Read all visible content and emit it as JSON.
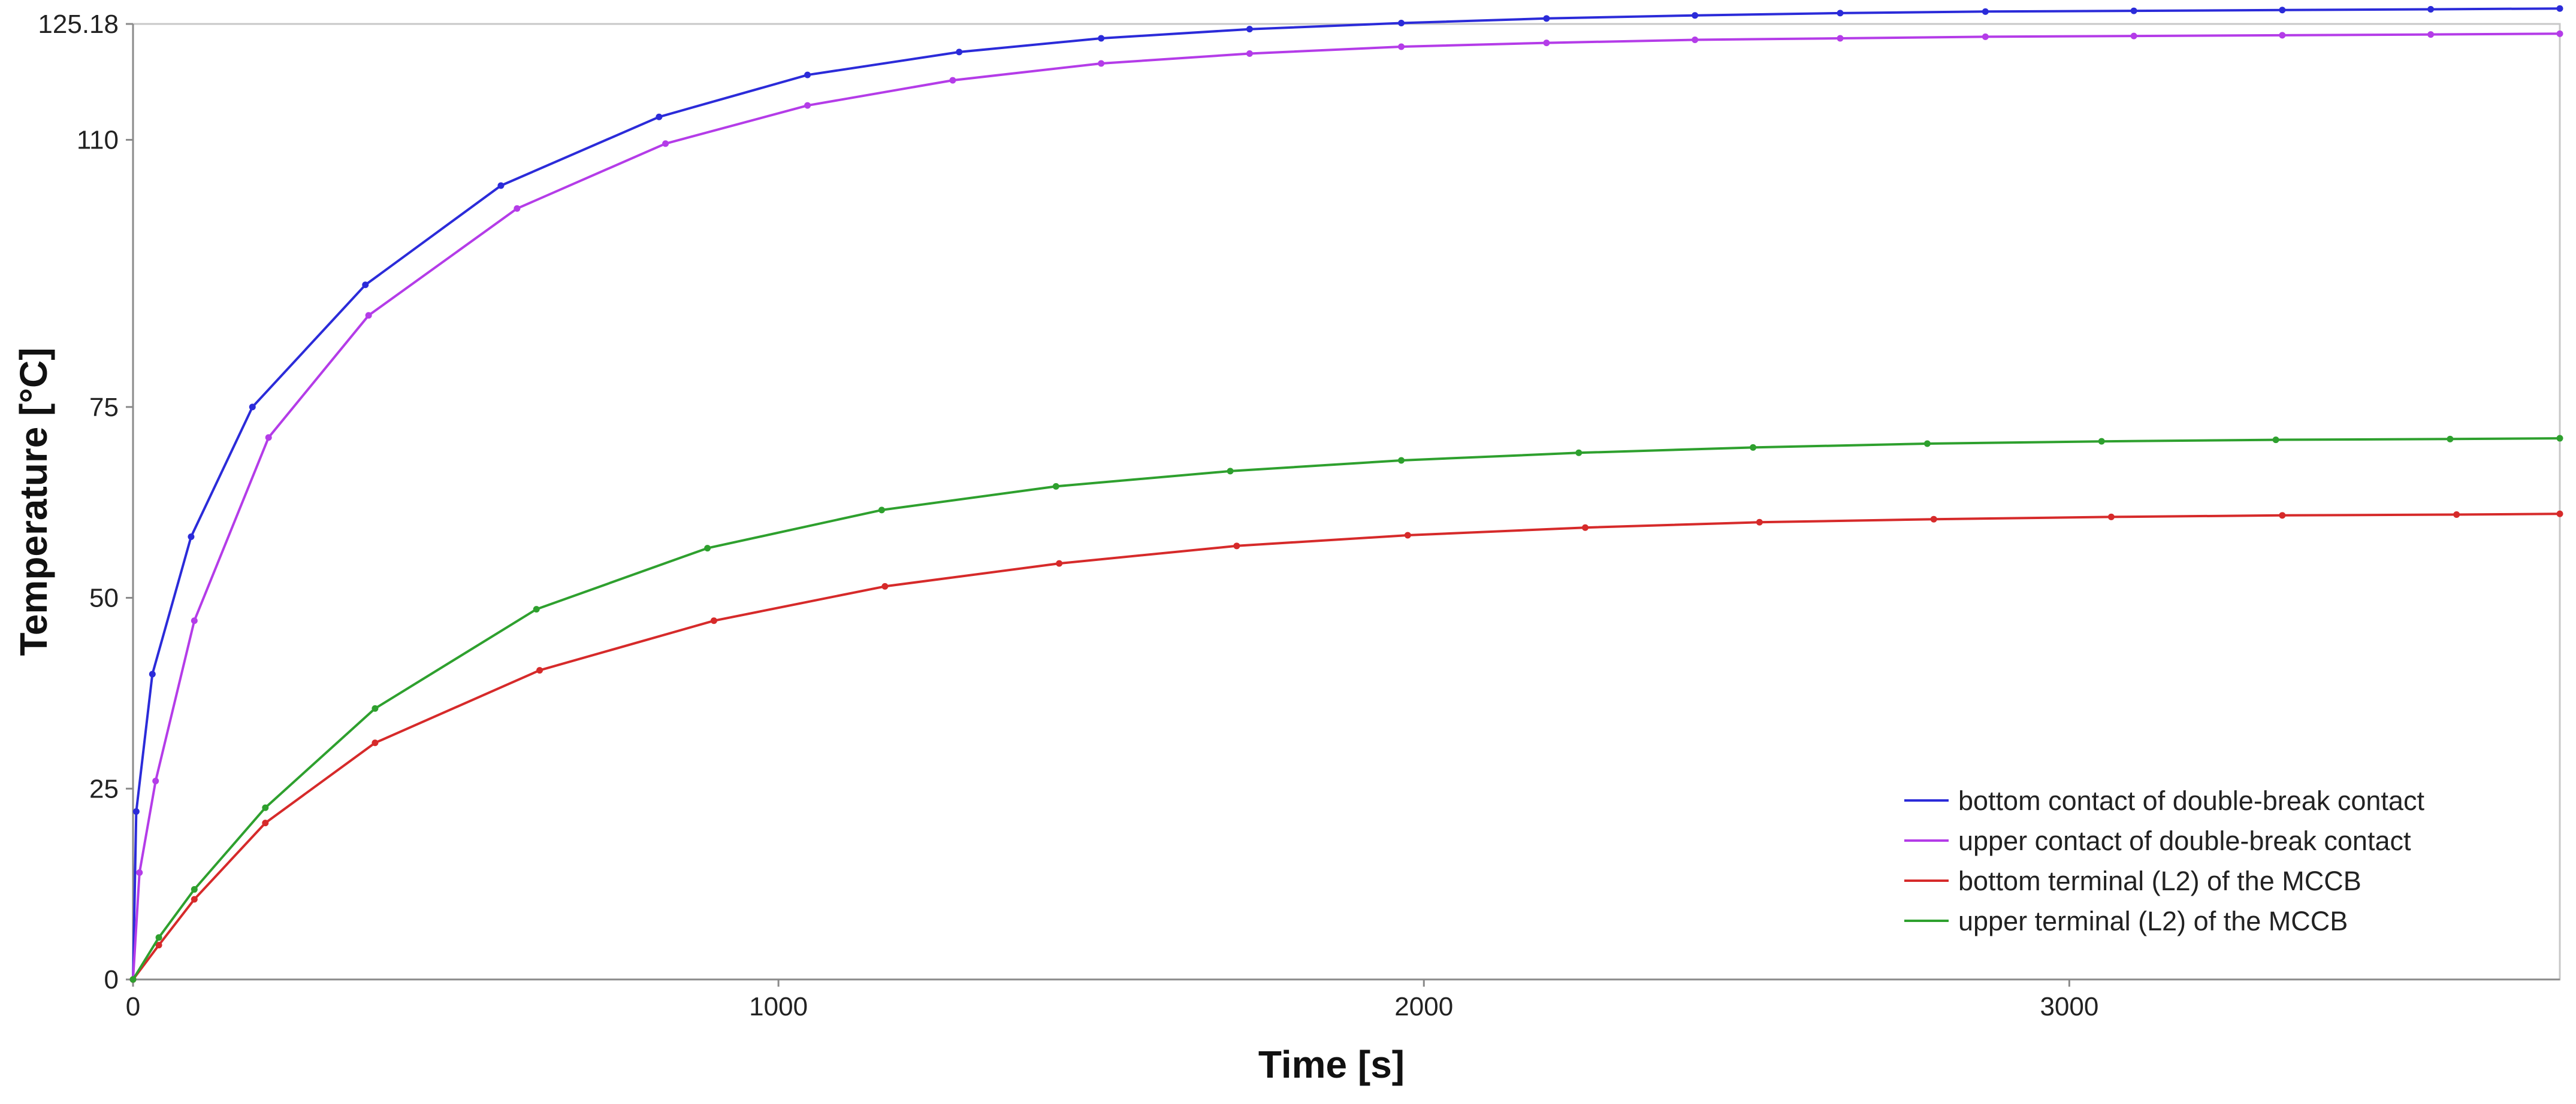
{
  "chart_data": {
    "type": "line",
    "xlabel": "Time [s]",
    "ylabel": "Temperature  [°C]",
    "xlim": [
      0,
      3760
    ],
    "ylim": [
      0,
      125.18
    ],
    "x_ticks": [
      0,
      1000,
      2000,
      3000
    ],
    "x_tick_labels": [
      "0",
      "1000",
      "2000",
      "3000"
    ],
    "y_ticks": [
      0,
      25,
      50,
      75,
      110,
      125.18
    ],
    "y_tick_labels": [
      "0",
      "25",
      "50",
      "75",
      "110",
      "125.18"
    ],
    "grid": false,
    "legend_position": "bottom-right",
    "series": [
      {
        "name": "bottom contact of double-break contact",
        "color": "#2b2bd9",
        "points": [
          [
            0,
            0
          ],
          [
            5,
            22
          ],
          [
            30,
            40
          ],
          [
            90,
            58
          ],
          [
            185,
            75
          ],
          [
            360,
            91
          ],
          [
            570,
            104
          ],
          [
            815,
            113
          ],
          [
            1045,
            118.5
          ],
          [
            1280,
            121.5
          ],
          [
            1500,
            123.3
          ],
          [
            1730,
            124.5
          ],
          [
            1965,
            125.3
          ],
          [
            2190,
            125.9
          ],
          [
            2420,
            126.3
          ],
          [
            2645,
            126.6
          ],
          [
            2870,
            126.8
          ],
          [
            3100,
            126.9
          ],
          [
            3330,
            127.0
          ],
          [
            3560,
            127.1
          ],
          [
            3760,
            127.2
          ]
        ]
      },
      {
        "name": "upper contact of double-break contact",
        "color": "#b43ce8",
        "points": [
          [
            0,
            0
          ],
          [
            10,
            14
          ],
          [
            35,
            26
          ],
          [
            95,
            47
          ],
          [
            210,
            71
          ],
          [
            365,
            87
          ],
          [
            595,
            101
          ],
          [
            825,
            109.5
          ],
          [
            1045,
            114.5
          ],
          [
            1270,
            117.8
          ],
          [
            1500,
            120
          ],
          [
            1730,
            121.3
          ],
          [
            1965,
            122.2
          ],
          [
            2190,
            122.7
          ],
          [
            2420,
            123.1
          ],
          [
            2645,
            123.3
          ],
          [
            2870,
            123.5
          ],
          [
            3100,
            123.6
          ],
          [
            3330,
            123.7
          ],
          [
            3560,
            123.8
          ],
          [
            3760,
            123.9
          ]
        ]
      },
      {
        "name": "bottom terminal (L2) of the MCCB",
        "color": "#d62a2a",
        "points": [
          [
            0,
            0
          ],
          [
            40,
            4.5
          ],
          [
            95,
            10.5
          ],
          [
            205,
            20.5
          ],
          [
            375,
            31
          ],
          [
            630,
            40.5
          ],
          [
            900,
            47
          ],
          [
            1165,
            51.5
          ],
          [
            1435,
            54.5
          ],
          [
            1710,
            56.8
          ],
          [
            1975,
            58.2
          ],
          [
            2250,
            59.2
          ],
          [
            2520,
            59.9
          ],
          [
            2790,
            60.3
          ],
          [
            3065,
            60.6
          ],
          [
            3330,
            60.8
          ],
          [
            3600,
            60.9
          ],
          [
            3760,
            61
          ]
        ]
      },
      {
        "name": "upper terminal (L2) of the MCCB",
        "color": "#2ea02e",
        "points": [
          [
            0,
            0
          ],
          [
            40,
            5.5
          ],
          [
            95,
            11.8
          ],
          [
            205,
            22.5
          ],
          [
            375,
            35.5
          ],
          [
            625,
            48.5
          ],
          [
            890,
            56.5
          ],
          [
            1160,
            61.5
          ],
          [
            1430,
            64.6
          ],
          [
            1700,
            66.6
          ],
          [
            1965,
            68
          ],
          [
            2240,
            69
          ],
          [
            2510,
            69.7
          ],
          [
            2780,
            70.2
          ],
          [
            3050,
            70.5
          ],
          [
            3320,
            70.7
          ],
          [
            3590,
            70.8
          ],
          [
            3760,
            70.9
          ]
        ]
      }
    ]
  }
}
